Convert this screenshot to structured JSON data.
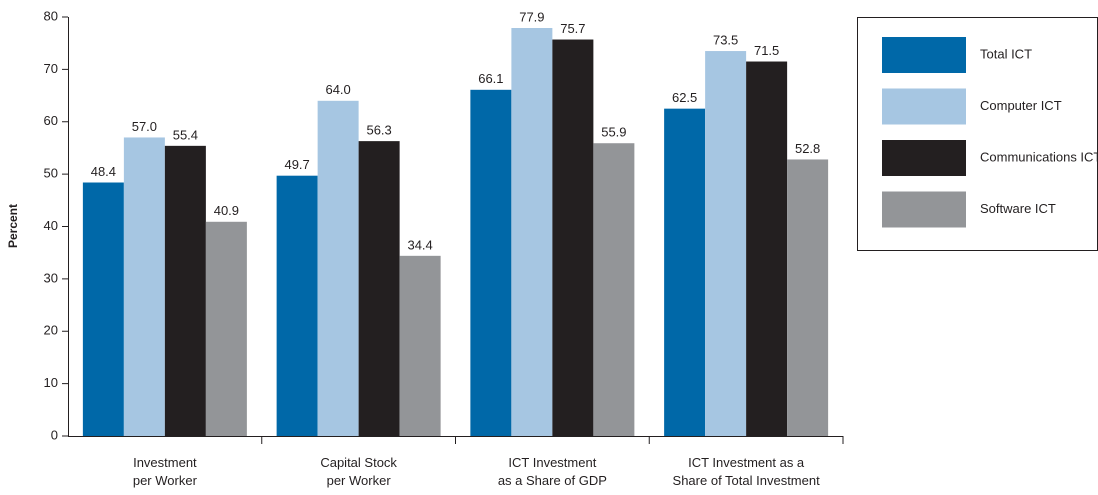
{
  "chart_data": {
    "type": "bar",
    "y_label": "Percent",
    "categories": [
      "Investment\nper Worker",
      "Capital Stock\nper Worker",
      "ICT Investment\nas a Share of GDP",
      "ICT Investment as a\nShare of Total Investment"
    ],
    "series": [
      {
        "name": "Total ICT",
        "color": "#0068a8",
        "values": [
          48.4,
          49.7,
          66.1,
          62.5
        ],
        "value_labels": [
          "48.4",
          "49.7",
          "66.1",
          "62.5"
        ]
      },
      {
        "name": "Computer ICT",
        "color": "#a6c6e2",
        "values": [
          57,
          64,
          77.9,
          73.5
        ],
        "value_labels": [
          "57.0",
          "64.0",
          "77.9",
          "73.5"
        ]
      },
      {
        "name": "Communications ICT",
        "color": "#231f20",
        "values": [
          55.4,
          56.3,
          75.7,
          71.5
        ],
        "value_labels": [
          "55.4",
          "56.3",
          "75.7",
          "71.5"
        ]
      },
      {
        "name": "Software ICT",
        "color": "#939598",
        "values": [
          40.9,
          34.4,
          55.9,
          52.8
        ],
        "value_labels": [
          "40.9",
          "34.4",
          "55.9",
          "52.8"
        ]
      }
    ],
    "ylim": [
      0,
      80
    ],
    "yticks": [
      0,
      10,
      20,
      30,
      40,
      50,
      60,
      70,
      80
    ],
    "legend": "right"
  }
}
